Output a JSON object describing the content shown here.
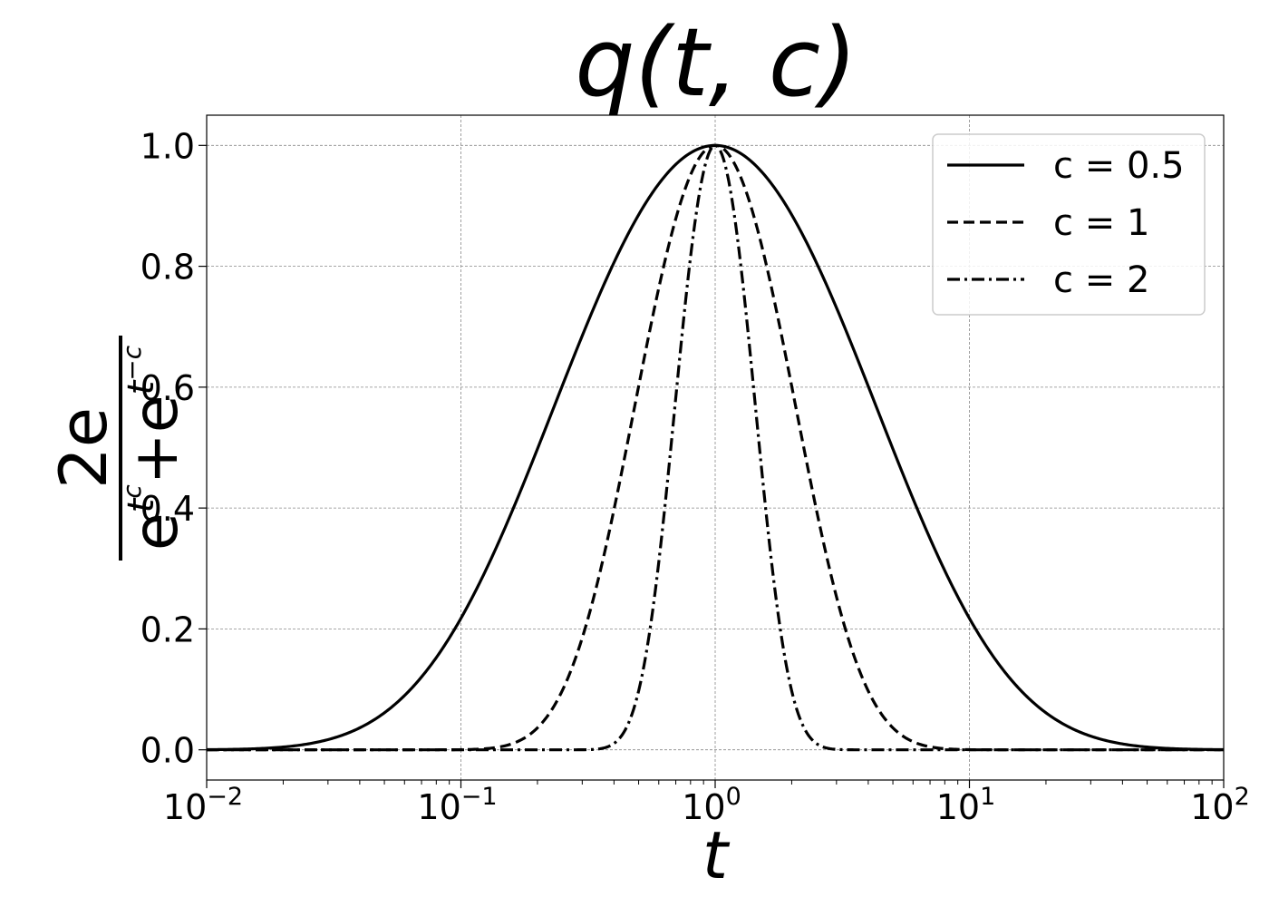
{
  "chart_data": {
    "type": "line",
    "title": "q(t, c)",
    "xlabel": "t",
    "ylabel": {
      "numerator": "2e",
      "denominator_base": "e",
      "exp1": "t^c",
      "plus": "+",
      "exp2": "t^-c"
    },
    "x_scale": "log",
    "xlim": [
      0.01,
      100
    ],
    "ylim": [
      -0.05,
      1.05
    ],
    "x_ticks": [
      {
        "value": 0.01,
        "base": "10",
        "exp": "−2"
      },
      {
        "value": 0.1,
        "base": "10",
        "exp": "−1"
      },
      {
        "value": 1,
        "base": "10",
        "exp": "0"
      },
      {
        "value": 10,
        "base": "10",
        "exp": "1"
      },
      {
        "value": 100,
        "base": "10",
        "exp": "2"
      }
    ],
    "y_ticks": [
      {
        "value": 0.0,
        "label": "0.0"
      },
      {
        "value": 0.2,
        "label": "0.2"
      },
      {
        "value": 0.4,
        "label": "0.4"
      },
      {
        "value": 0.6,
        "label": "0.6"
      },
      {
        "value": 0.8,
        "label": "0.8"
      },
      {
        "value": 1.0,
        "label": "1.0"
      }
    ],
    "grid": true,
    "legend_position": "top-right",
    "series": [
      {
        "name": "c = 0.5",
        "c": 0.5,
        "style": "solid",
        "x": [
          0.01,
          0.02,
          0.05,
          0.1,
          0.2,
          0.3,
          0.5,
          0.7,
          1,
          1.5,
          2,
          3,
          5,
          10,
          20,
          50,
          100
        ],
        "values": [
          0.0006,
          0.0139,
          0.0943,
          0.2326,
          0.4609,
          0.5972,
          0.7882,
          0.9044,
          1.0,
          0.9576,
          0.8916,
          0.7602,
          0.574,
          0.284,
          0.082,
          0.002,
          3e-05
        ]
      },
      {
        "name": "c = 1",
        "c": 1,
        "style": "dashed",
        "x": [
          0.05,
          0.1,
          0.2,
          0.3,
          0.5,
          0.7,
          1,
          1.5,
          2,
          3,
          5,
          10,
          20
        ],
        "values": [
          0.0,
          0.0002,
          0.0462,
          0.2015,
          0.588,
          0.8659,
          1.0,
          0.8435,
          0.588,
          0.2015,
          0.0202,
          0.0002,
          0.0
        ]
      },
      {
        "name": "c = 2",
        "c": 2,
        "style": "dashdot",
        "x": [
          0.2,
          0.3,
          0.4,
          0.5,
          0.7,
          0.9,
          1,
          1.2,
          1.5,
          2,
          2.5,
          3,
          4
        ],
        "values": [
          0.0,
          0.0,
          0.0052,
          0.0821,
          0.5417,
          0.9561,
          1.0,
          0.8314,
          0.3686,
          0.0238,
          0.0001,
          0.0,
          0.0
        ]
      }
    ]
  }
}
